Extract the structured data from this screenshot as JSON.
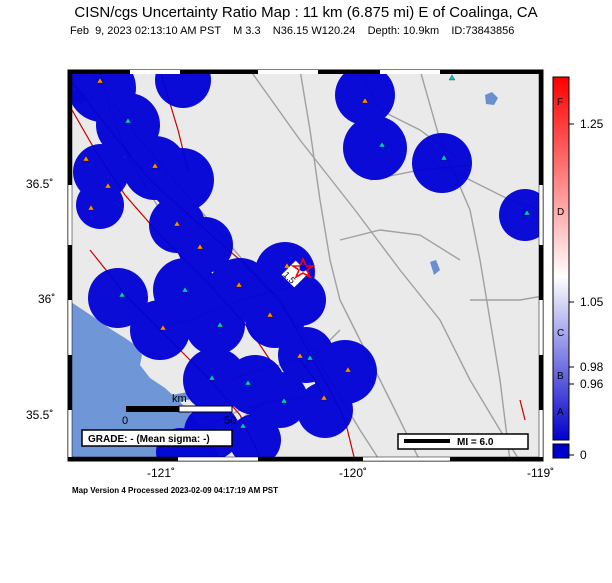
{
  "title": "CISN/cgs Uncertainty Ratio Map : 11 km (6.875 mi) E of Coalinga, CA",
  "subtitle": "Feb  9, 2023 02:13:10 AM PST    M 3.3    N36.15 W120.24    Depth: 10.9km    ID:73843856",
  "footer": "Map Version 4 Processed 2023-02-09 04:17:19 AM PST",
  "axes": {
    "lat_labels": [
      "36.5˚",
      "36˚",
      "35.5˚"
    ],
    "lon_labels": [
      "-121˚",
      "-120˚",
      "-119˚"
    ]
  },
  "scale_bar": {
    "unit": "km",
    "start": "0",
    "end": "50"
  },
  "grade_box": "GRADE: - (Mean sigma: -)",
  "mi_legend": "MI = 6.0",
  "epicenter_label": "1.5",
  "colorbar": {
    "values": [
      "1.25",
      "1.05",
      "0.98",
      "0.96",
      "0"
    ],
    "grades": [
      "F",
      "D",
      "C",
      "B",
      "A"
    ],
    "colors": [
      "#ff0000",
      "#ffffff",
      "#0000cc"
    ]
  },
  "colors": {
    "circle": "#0000d6",
    "sea": "#6f96d6",
    "land": "#eaeaea",
    "fault": "#cc0000",
    "road": "#a0a0a0",
    "water": "#6a8fd0",
    "station": "#00c8c8",
    "station_alt": "#ff8c00"
  },
  "icons": {
    "epicenter": "red-star-icon",
    "station_triangle": "triangle-icon"
  }
}
